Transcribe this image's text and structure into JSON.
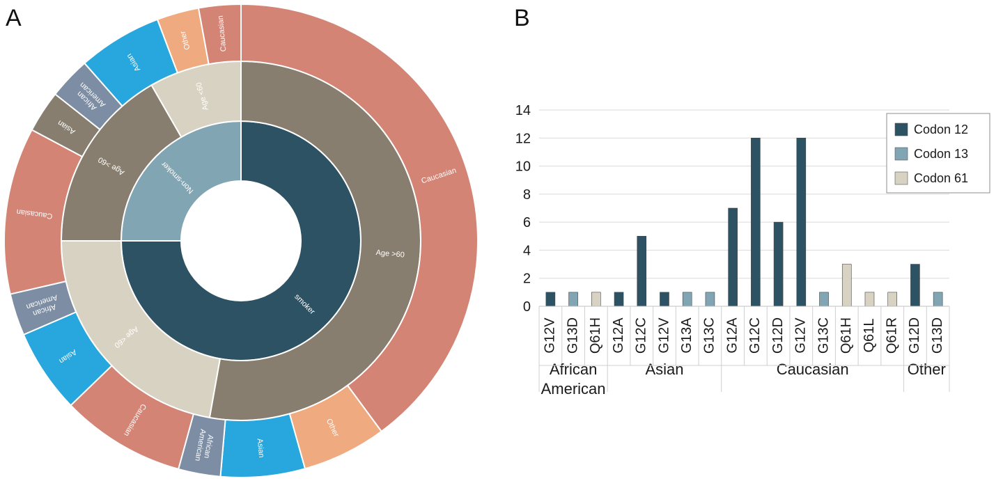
{
  "panels": {
    "a_letter": "A",
    "b_letter": "B"
  },
  "colors": {
    "smoker": "#2c5263",
    "non_smoker": "#82a5b4",
    "age_over_60": "#877e6f",
    "age_under_60": "#d8d2c2",
    "caucasian": "#d38475",
    "asian": "#28a6de",
    "african_american": "#7c8da4",
    "other": "#efaa80",
    "codon12": "#2c5263",
    "codon13": "#82a5b4",
    "codon61": "#d8d2c2"
  },
  "chart_data": [
    {
      "type": "sunburst",
      "rings": [
        {
          "level": "inner",
          "segments": [
            {
              "label": "smoker",
              "share": 0.75,
              "color_key": "smoker"
            },
            {
              "label": "Non-smoker",
              "share": 0.25,
              "color_key": "non_smoker"
            }
          ]
        },
        {
          "level": "middle",
          "segments": [
            {
              "label": "Age >60",
              "share": 0.528,
              "color_key": "age_over_60"
            },
            {
              "label": "Age <60",
              "share": 0.222,
              "color_key": "age_under_60"
            },
            {
              "label": "Age >60",
              "share": 0.167,
              "color_key": "age_over_60"
            },
            {
              "label": "Age <60",
              "share": 0.083,
              "color_key": "age_under_60"
            }
          ]
        },
        {
          "level": "outer",
          "segments": [
            {
              "label": "Caucasian",
              "share": 0.389,
              "color_key": "caucasian"
            },
            {
              "label": "Other",
              "share": 0.056,
              "color_key": "other"
            },
            {
              "label": "Asian",
              "share": 0.056,
              "color_key": "asian"
            },
            {
              "label": "African\nAmerican",
              "share": 0.028,
              "color_key": "african_american"
            },
            {
              "label": "Caucasian",
              "share": 0.083,
              "color_key": "caucasian"
            },
            {
              "label": "Asian",
              "share": 0.056,
              "color_key": "asian"
            },
            {
              "label": "African\nAmerican",
              "share": 0.028,
              "color_key": "african_american"
            },
            {
              "label": "Caucasian",
              "share": 0.111,
              "color_key": "caucasian"
            },
            {
              "label": "Asian",
              "share": 0.028,
              "color_key": "age_over_60"
            },
            {
              "label": "African\nAmerican",
              "share": 0.028,
              "color_key": "african_american"
            },
            {
              "label": "Asian",
              "share": 0.056,
              "color_key": "asian"
            },
            {
              "label": "Other",
              "share": 0.028,
              "color_key": "other"
            },
            {
              "label": "Caucasian",
              "share": 0.028,
              "color_key": "caucasian"
            }
          ]
        }
      ]
    },
    {
      "type": "bar",
      "ylim": [
        0,
        14
      ],
      "yticks": [
        0,
        2,
        4,
        6,
        8,
        10,
        12,
        14
      ],
      "legend_position": "top-right",
      "series": [
        {
          "name": "Codon 12",
          "color_key": "codon12"
        },
        {
          "name": "Codon 13",
          "color_key": "codon13"
        },
        {
          "name": "Codon 61",
          "color_key": "codon61"
        }
      ],
      "groups": [
        {
          "name": "African\nAmerican",
          "bars": [
            {
              "label": "G12V",
              "value": 1,
              "series": "Codon 12"
            },
            {
              "label": "G13D",
              "value": 1,
              "series": "Codon 13"
            },
            {
              "label": "Q61H",
              "value": 1,
              "series": "Codon 61"
            }
          ]
        },
        {
          "name": "Asian",
          "bars": [
            {
              "label": "G12A",
              "value": 1,
              "series": "Codon 12"
            },
            {
              "label": "G12C",
              "value": 5,
              "series": "Codon 12"
            },
            {
              "label": "G12V",
              "value": 1,
              "series": "Codon 12"
            },
            {
              "label": "G13A",
              "value": 1,
              "series": "Codon 13"
            },
            {
              "label": "G13C",
              "value": 1,
              "series": "Codon 13"
            }
          ]
        },
        {
          "name": "Caucasian",
          "bars": [
            {
              "label": "G12A",
              "value": 7,
              "series": "Codon 12"
            },
            {
              "label": "G12C",
              "value": 12,
              "series": "Codon 12"
            },
            {
              "label": "G12D",
              "value": 6,
              "series": "Codon 12"
            },
            {
              "label": "G12V",
              "value": 12,
              "series": "Codon 12"
            },
            {
              "label": "G13C",
              "value": 1,
              "series": "Codon 13"
            },
            {
              "label": "Q61H",
              "value": 3,
              "series": "Codon 61"
            },
            {
              "label": "Q61L",
              "value": 1,
              "series": "Codon 61"
            },
            {
              "label": "Q61R",
              "value": 1,
              "series": "Codon 61"
            }
          ]
        },
        {
          "name": "Other",
          "bars": [
            {
              "label": "G12D",
              "value": 3,
              "series": "Codon 12"
            },
            {
              "label": "G13D",
              "value": 1,
              "series": "Codon 13"
            }
          ]
        }
      ]
    }
  ]
}
